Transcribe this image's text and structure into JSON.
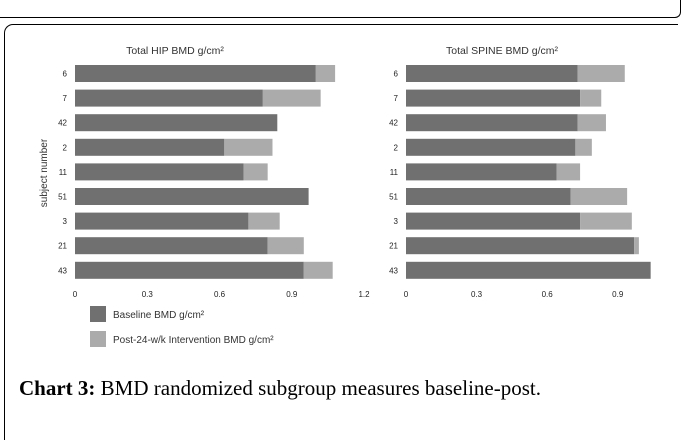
{
  "caption": {
    "label": "Chart 3:",
    "text": " BMD randomized subgroup measures baseline-post."
  },
  "colors": {
    "baseline": "#707070",
    "post": "#ababab"
  },
  "chart_data": [
    {
      "type": "bar",
      "orientation": "horizontal",
      "stacked": true,
      "title": "Total HIP BMD g/cm²",
      "ylabel": "subject number",
      "xlim": [
        0,
        1.2
      ],
      "xticks": [
        "0",
        "0.3",
        "0.6",
        "0.9",
        "1.2"
      ],
      "categories": [
        "6",
        "7",
        "42",
        "2",
        "11",
        "51",
        "3",
        "21",
        "43"
      ],
      "series": [
        {
          "name": "Baseline BMD g/cm²",
          "values": [
            1.0,
            0.78,
            0.84,
            0.62,
            0.7,
            0.97,
            0.72,
            0.8,
            0.95
          ]
        },
        {
          "name": "Post-24-w/k Intervention BMD g/cm²",
          "values": [
            0.08,
            0.24,
            0.0,
            0.2,
            0.1,
            0.0,
            0.13,
            0.15,
            0.12
          ]
        }
      ],
      "legend": "bottom-left"
    },
    {
      "type": "bar",
      "orientation": "horizontal",
      "stacked": true,
      "title": "Total SPINE BMD g/cm²",
      "xlim": [
        0,
        1.05
      ],
      "xticks": [
        "0",
        "0.3",
        "0.6",
        "0.9"
      ],
      "categories": [
        "6",
        "7",
        "42",
        "2",
        "11",
        "51",
        "3",
        "21",
        "43"
      ],
      "series": [
        {
          "name": "Baseline BMD g/cm²",
          "values": [
            0.73,
            0.74,
            0.73,
            0.72,
            0.64,
            0.7,
            0.74,
            0.97,
            1.04
          ]
        },
        {
          "name": "Post-24-w/k Intervention BMD g/cm²",
          "values": [
            0.2,
            0.09,
            0.12,
            0.07,
            0.1,
            0.24,
            0.22,
            0.02,
            0.0
          ]
        }
      ]
    }
  ]
}
